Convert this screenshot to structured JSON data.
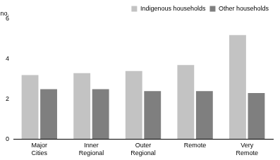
{
  "chart_data": {
    "type": "bar",
    "ylabel": "no.",
    "categories": [
      "Major Cities",
      "Inner Regional",
      "Outer Regional",
      "Remote",
      "Very Remote"
    ],
    "series": [
      {
        "name": "Indigenous households",
        "color": "#c3c3c3",
        "values": [
          3.2,
          3.3,
          3.4,
          3.7,
          5.2
        ]
      },
      {
        "name": "Other households",
        "color": "#7f7f7f",
        "values": [
          2.5,
          2.5,
          2.4,
          2.4,
          2.3
        ]
      }
    ],
    "ylim": [
      0,
      6
    ],
    "yticks": [
      0,
      2,
      4,
      6
    ],
    "grid": true,
    "legend": "top-right"
  }
}
